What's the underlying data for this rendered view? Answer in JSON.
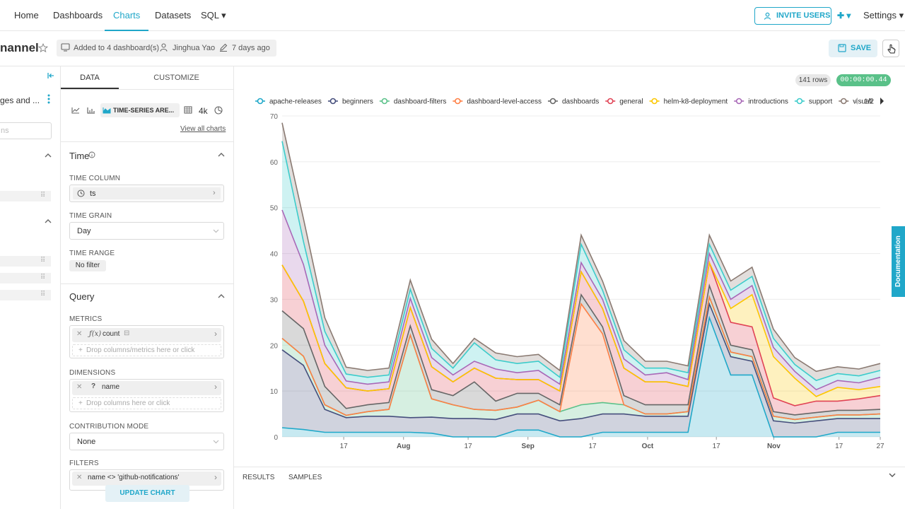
{
  "nav": {
    "home": "Home",
    "dashboards": "Dashboards",
    "charts": "Charts",
    "datasets": "Datasets",
    "sql": "SQL ▾",
    "invite": "INVITE USERS",
    "plus": "✚ ▾",
    "settings": "Settings ▾"
  },
  "header": {
    "title_partial": "nannel",
    "added": "Added to 4 dashboard(s)",
    "owner": "Jinghua Yao",
    "modified": "7 days ago",
    "save": "SAVE"
  },
  "left": {
    "dataset_partial": "ges and ...",
    "search_partial": "ns"
  },
  "control": {
    "tab_data": "DATA",
    "tab_customize": "CUSTOMIZE",
    "viz_name": "TIME-SERIES ARE...",
    "viz_4k": "4k",
    "view_all": "View all charts",
    "time_section": "Time",
    "time_column_label": "TIME COLUMN",
    "time_column_value": "ts",
    "time_grain_label": "TIME GRAIN",
    "time_grain_value": "Day",
    "time_range_label": "TIME RANGE",
    "time_range_value": "No filter",
    "query_section": "Query",
    "metrics_label": "METRICS",
    "metric_value": "count",
    "metric_drop": "Drop columns/metrics here or click",
    "dimensions_label": "DIMENSIONS",
    "dimension_value": "name",
    "dimension_drop": "Drop columns here or click",
    "contribution_label": "CONTRIBUTION MODE",
    "contribution_value": "None",
    "filters_label": "FILTERS",
    "filter_value": "name <> 'github-notifications'",
    "update": "UPDATE CHART"
  },
  "status": {
    "rows": "141 rows",
    "time": "00:00:00.44"
  },
  "doc_tab": "Documentation",
  "bottom": {
    "results": "RESULTS",
    "samples": "SAMPLES"
  },
  "chart_data": {
    "type": "area",
    "stacked": true,
    "legend_page": "1/2",
    "legend_position": "top",
    "ylim": [
      0,
      70
    ],
    "yticks": [
      0,
      10,
      20,
      30,
      40,
      50,
      60,
      70
    ],
    "xticks": [
      "17",
      "Aug",
      "17",
      "Sep",
      "17",
      "Oct",
      "17",
      "Nov",
      "17",
      "27"
    ],
    "x_count": 29,
    "series": [
      {
        "name": "apache-releases",
        "color": "#1FA8C9",
        "values": [
          2,
          1.6,
          1,
          1,
          1,
          1,
          1,
          0.8,
          0,
          0,
          0,
          1.5,
          1.5,
          0,
          0,
          1,
          1,
          1,
          1,
          1,
          26,
          13.5,
          13.5,
          0,
          0,
          0,
          1,
          1,
          1
        ]
      },
      {
        "name": "beginners",
        "color": "#454E7C",
        "values": [
          17,
          14,
          5,
          3.2,
          3.5,
          3.5,
          3.2,
          3.5,
          4,
          4,
          3.8,
          3.5,
          3.5,
          3.5,
          4,
          4,
          4,
          3.5,
          3.5,
          3.5,
          3,
          4,
          3,
          3.5,
          3,
          3.5,
          3,
          3,
          3
        ]
      },
      {
        "name": "dashboard-filters",
        "color": "#5AC189",
        "values": [
          2.5,
          2,
          1,
          0.5,
          1,
          1.5,
          18,
          4,
          3,
          2,
          2,
          1.5,
          3,
          2,
          3,
          2.5,
          2,
          0.5,
          0.5,
          1,
          1.5,
          1,
          1,
          1,
          0.8,
          0.8,
          0.8,
          0.8,
          1
        ]
      },
      {
        "name": "dashboard-level-access",
        "color": "#FF7F44",
        "values": [
          0,
          0,
          0,
          0,
          0,
          0,
          0,
          0,
          0,
          0,
          0,
          0,
          0,
          0,
          22,
          15,
          0,
          0,
          0,
          0,
          0,
          0,
          0,
          0,
          0,
          0,
          0,
          0,
          0
        ]
      },
      {
        "name": "dashboards",
        "color": "#666666",
        "values": [
          6,
          6,
          4,
          1.5,
          1.5,
          1.5,
          2,
          2,
          2,
          6,
          2,
          3,
          1.5,
          1.5,
          2,
          1.5,
          2,
          2,
          2,
          1.5,
          2.5,
          1.5,
          1.5,
          1,
          1,
          1,
          1,
          1,
          1
        ]
      },
      {
        "name": "general",
        "color": "#E04355",
        "values": [
          10,
          6,
          5,
          4.5,
          3,
          3,
          4,
          5,
          3,
          3,
          5,
          3,
          3,
          3,
          5,
          4,
          6,
          5,
          5,
          4,
          5,
          5,
          5,
          3,
          2,
          2.5,
          2,
          2.5,
          3
        ]
      },
      {
        "name": "helm-k8-deployment",
        "color": "#FCC700",
        "values": [
          0,
          0,
          0,
          0,
          0,
          0,
          0,
          0,
          0,
          0,
          0,
          0,
          0,
          0,
          0,
          0,
          0,
          0,
          0,
          0,
          0,
          3,
          7,
          9,
          6,
          1,
          3,
          2,
          2
        ]
      },
      {
        "name": "introductions",
        "color": "#A868B7",
        "values": [
          12,
          8,
          4,
          1.5,
          1.5,
          1.5,
          2,
          2,
          1.5,
          1.5,
          2,
          1.5,
          2,
          1.5,
          2,
          2,
          2,
          1.5,
          2,
          1.5,
          2,
          2,
          2,
          2,
          1.5,
          1.5,
          1.5,
          1.5,
          2
        ]
      },
      {
        "name": "support",
        "color": "#3CCCCB",
        "values": [
          15,
          5,
          3,
          1.5,
          1.5,
          1.5,
          2,
          2,
          1.5,
          4,
          2,
          2,
          2,
          1.5,
          4,
          2,
          2,
          1.5,
          1,
          1.5,
          2,
          2,
          2,
          2,
          1.5,
          2,
          1.5,
          1.5,
          1.5
        ]
      },
      {
        "name": "visuali",
        "color": "#8A7A72",
        "values": [
          4,
          5,
          3,
          1.5,
          1.5,
          1.5,
          2,
          2,
          1,
          1,
          1.5,
          1.5,
          1.5,
          1.5,
          2,
          2,
          2,
          1.5,
          1.5,
          1.5,
          2,
          2,
          2,
          2,
          1.5,
          2,
          1.5,
          1.5,
          1.5
        ]
      }
    ]
  }
}
